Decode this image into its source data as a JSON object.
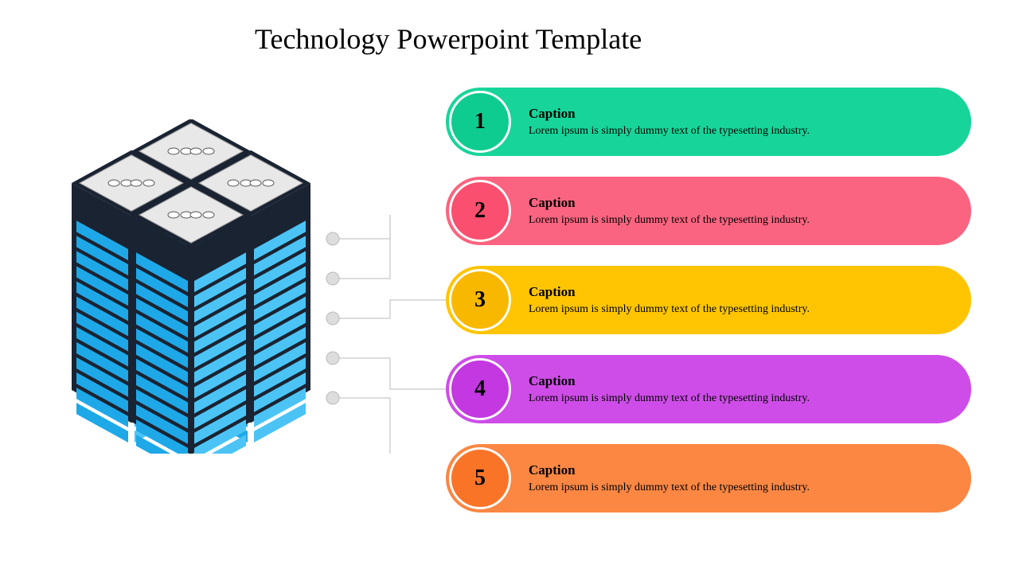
{
  "title": "Technology Powerpoint Template",
  "background_color": "#ffffff",
  "title_color": "#000000",
  "title_fontsize": 36,
  "server": {
    "body_color": "#1a2332",
    "panel_color": "#1ea8e8",
    "panel_light": "#4bc4f5",
    "top_light": "#e8e8e8",
    "top_dark": "#c8c8c8"
  },
  "connector": {
    "line_color": "#c8c8c8",
    "dot_fill": "#dddddd",
    "dot_stroke": "#bbbbbb"
  },
  "items": [
    {
      "num": "1",
      "caption": "Caption",
      "desc": "Lorem ipsum is simply dummy text of the typesetting industry.",
      "bar_color": "#17d59a",
      "badge_color": "#0ecc8f"
    },
    {
      "num": "2",
      "caption": "Caption",
      "desc": "Lorem ipsum is simply dummy text of the typesetting industry.",
      "bar_color": "#fb6480",
      "badge_color": "#fa4f6e"
    },
    {
      "num": "3",
      "caption": "Caption",
      "desc": "Lorem ipsum is simply dummy text of the typesetting industry.",
      "bar_color": "#ffc502",
      "badge_color": "#f9b800"
    },
    {
      "num": "4",
      "caption": "Caption",
      "desc": "Lorem ipsum is simply dummy text of the typesetting industry.",
      "bar_color": "#ce4de8",
      "badge_color": "#c338e0"
    },
    {
      "num": "5",
      "caption": "Caption",
      "desc": "Lorem ipsum is simply dummy text of the typesetting industry.",
      "bar_color": "#fb8743",
      "badge_color": "#fa7428"
    }
  ],
  "item_style": {
    "height": 86,
    "gap": 26,
    "border_radius": 43,
    "badge_diameter": 78,
    "badge_border": "#ffffff",
    "caption_fontsize": 17,
    "desc_fontsize": 14,
    "text_color": "#000000"
  }
}
